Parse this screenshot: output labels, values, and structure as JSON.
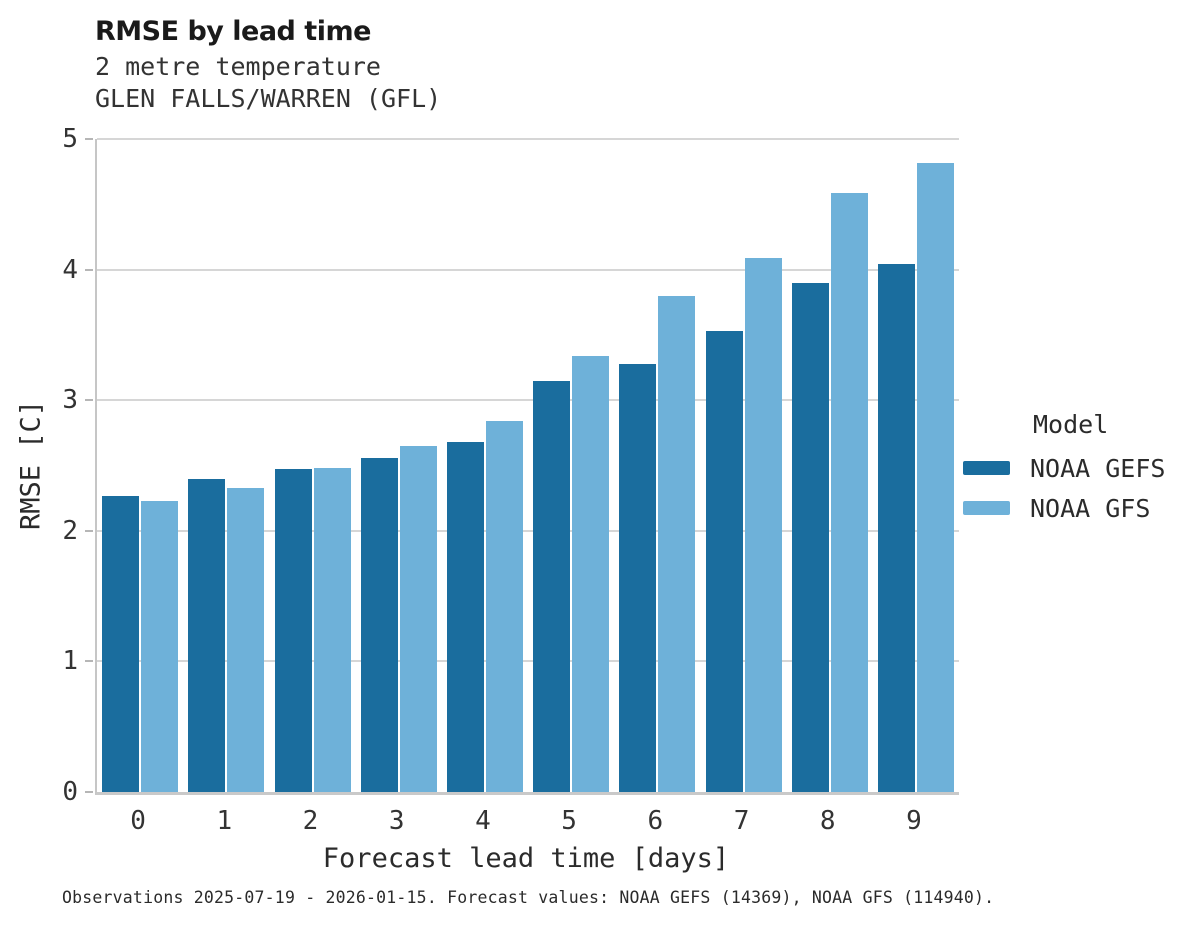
{
  "header": {
    "title": "RMSE by lead time",
    "subtitle_variable": "2 metre temperature",
    "subtitle_station": "GLEN FALLS/WARREN (GFL)"
  },
  "legend": {
    "title": "Model"
  },
  "footer": {
    "caption": "Observations 2025-07-19 - 2026-01-15. Forecast values: NOAA GEFS (14369), NOAA GFS (114940)."
  },
  "colors": {
    "gefs_bar": "#1A6D9E",
    "gfs_bar": "#6EB1D9",
    "gridline": "#d6d6d6",
    "axis_spine": "#c6c6c6",
    "text": "#2b2b2b"
  },
  "chart_data": {
    "type": "bar",
    "title": "RMSE by lead time",
    "subtitle": [
      "2 metre temperature",
      "GLEN FALLS/WARREN (GFL)"
    ],
    "xlabel": "Forecast lead time [days]",
    "ylabel": "RMSE [C]",
    "categories": [
      0,
      1,
      2,
      3,
      4,
      5,
      6,
      7,
      8,
      9
    ],
    "series": [
      {
        "name": "NOAA GEFS",
        "color": "#1A6D9E",
        "values": [
          2.27,
          2.4,
          2.47,
          2.56,
          2.68,
          3.15,
          3.28,
          3.53,
          3.9,
          4.04
        ]
      },
      {
        "name": "NOAA GFS",
        "color": "#6EB1D9",
        "values": [
          2.23,
          2.33,
          2.48,
          2.65,
          2.84,
          3.34,
          3.8,
          4.09,
          4.59,
          4.82
        ]
      }
    ],
    "ylim": [
      0,
      5
    ],
    "y_ticks": [
      0,
      1,
      2,
      3,
      4,
      5
    ],
    "grid": "horizontal",
    "legend_position": "right",
    "legend_title": "Model"
  }
}
